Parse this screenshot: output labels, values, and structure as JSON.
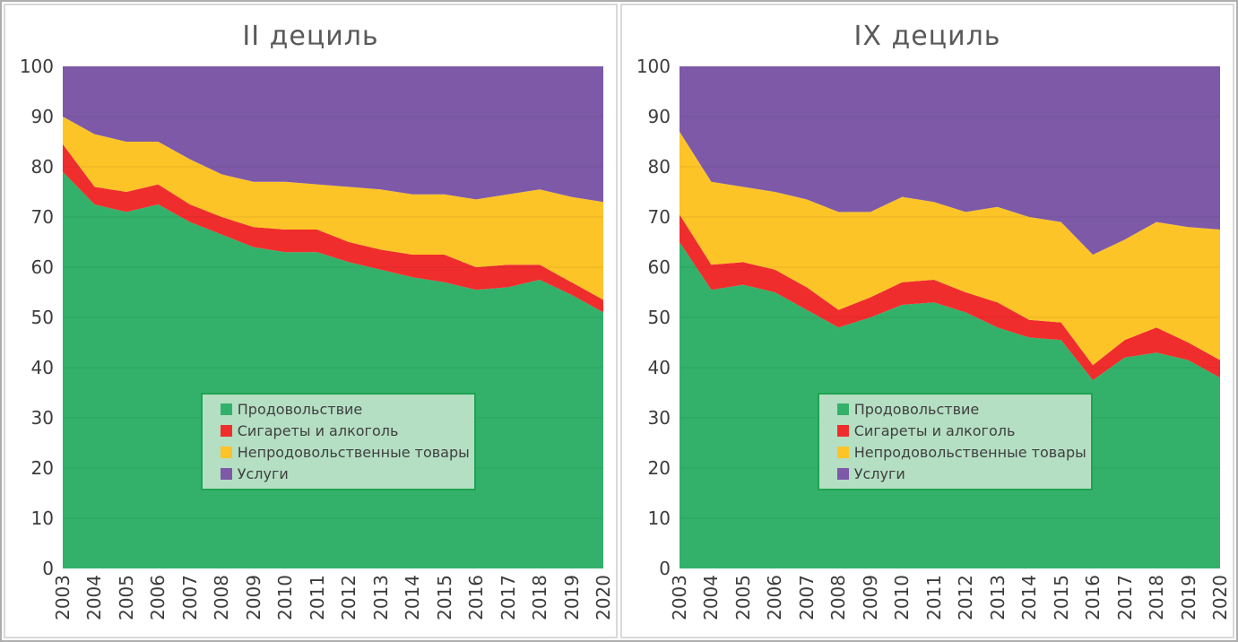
{
  "accent_colors": {
    "food_green": "#33B16A",
    "cigarettes_red": "#F02D2D",
    "nonfood_yellow": "#FDC428",
    "services_purple": "#7D59A8",
    "legend_background": "#B4DFC3",
    "legend_border": "#1FA350",
    "panel_border": "#D9D9D9",
    "title_gray": "#595959"
  },
  "chart_data": [
    {
      "type": "area",
      "stacking": "percent",
      "title": "II дециль",
      "xlabel": "",
      "ylabel": "",
      "ylim": [
        0,
        100
      ],
      "grid": true,
      "legend_position": "inside-bottom-left",
      "y_ticks": [
        0,
        10,
        20,
        30,
        40,
        50,
        60,
        70,
        80,
        90,
        100
      ],
      "categories": [
        "2003",
        "2004",
        "2005",
        "2006",
        "2007",
        "2008",
        "2009",
        "2010",
        "2011",
        "2012",
        "2013",
        "2014",
        "2015",
        "2016",
        "2017",
        "2018",
        "2019",
        "2020"
      ],
      "series": [
        {
          "name": "Продовольствие",
          "color": "#33B16A",
          "values": [
            79,
            72.5,
            71,
            72.5,
            69,
            66.5,
            64,
            63,
            63,
            61,
            59.5,
            58,
            57,
            55.5,
            56,
            57.5,
            54.5,
            51
          ]
        },
        {
          "name": "Сигареты и алкоголь",
          "color": "#F02D2D",
          "values": [
            5.5,
            3.5,
            4,
            4,
            3.5,
            3.5,
            4,
            4.5,
            4.5,
            4,
            4,
            4.5,
            5.5,
            4.5,
            4.5,
            3,
            2.5,
            2.5
          ]
        },
        {
          "name": "Непродовольственные товары",
          "color": "#FDC428",
          "values": [
            5.5,
            10.5,
            10,
            8.5,
            9,
            8.5,
            9,
            9.5,
            9,
            11,
            12,
            12,
            12,
            13.5,
            14,
            15,
            17,
            19.5
          ]
        },
        {
          "name": "Услуги",
          "color": "#7D59A8",
          "values": [
            10,
            13.5,
            15,
            15,
            18.5,
            21.5,
            23,
            23,
            23.5,
            24,
            24.5,
            25.5,
            25.5,
            26.5,
            25.5,
            24.5,
            26,
            27
          ]
        }
      ]
    },
    {
      "type": "area",
      "stacking": "percent",
      "title": "IX дециль",
      "xlabel": "",
      "ylabel": "",
      "ylim": [
        0,
        100
      ],
      "grid": true,
      "legend_position": "inside-bottom-left",
      "y_ticks": [
        0,
        10,
        20,
        30,
        40,
        50,
        60,
        70,
        80,
        90,
        100
      ],
      "categories": [
        "2003",
        "2004",
        "2005",
        "2006",
        "2007",
        "2008",
        "2009",
        "2010",
        "2011",
        "2012",
        "2013",
        "2014",
        "2015",
        "2016",
        "2017",
        "2018",
        "2019",
        "2020"
      ],
      "series": [
        {
          "name": "Продовольствие",
          "color": "#33B16A",
          "values": [
            65,
            55.5,
            56.5,
            55,
            51.5,
            48,
            50,
            52.5,
            53,
            51,
            48,
            46,
            45.5,
            37.5,
            42,
            43,
            41.5,
            38
          ]
        },
        {
          "name": "Сигареты и алкоголь",
          "color": "#F02D2D",
          "values": [
            5.5,
            5,
            4.5,
            4.5,
            4.5,
            3.5,
            4,
            4.5,
            4.5,
            4,
            5,
            3.5,
            3.5,
            3,
            3.5,
            5,
            3.5,
            3.5
          ]
        },
        {
          "name": "Непродовольственные товары",
          "color": "#FDC428",
          "values": [
            16.5,
            16.5,
            15,
            15.5,
            17.5,
            19.5,
            17,
            17,
            15.5,
            16,
            19,
            20.5,
            20,
            22,
            20,
            21,
            23,
            26
          ]
        },
        {
          "name": "Услуги",
          "color": "#7D59A8",
          "values": [
            13,
            23,
            24,
            25,
            26.5,
            29,
            29,
            26,
            27,
            29,
            28,
            30,
            31,
            37.5,
            34.5,
            31,
            32,
            32.5
          ]
        }
      ]
    }
  ]
}
